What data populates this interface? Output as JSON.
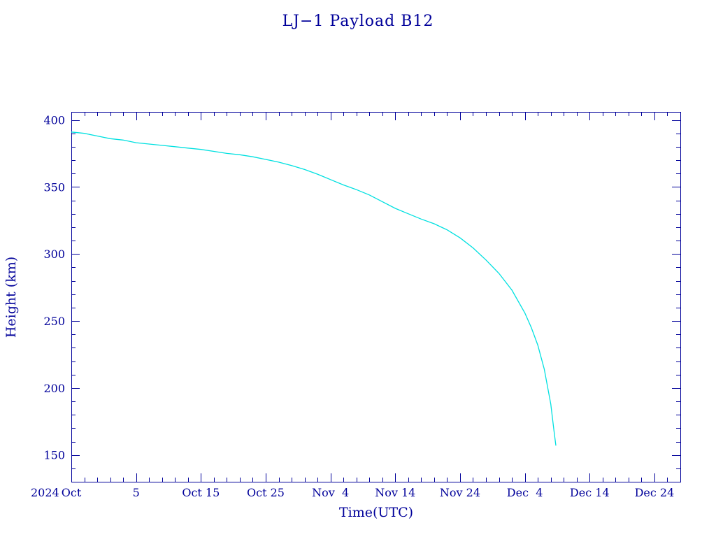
{
  "chart_data": {
    "type": "line",
    "title": "LJ−1 Payload B12",
    "xlabel": "Time(UTC)",
    "ylabel": "Height (km)",
    "x_axis": {
      "type": "date",
      "range": [
        "2024-09-25",
        "2024-12-28"
      ],
      "year_label": "2024",
      "ticks": [
        {
          "date": "2024-09-25",
          "label": "Oct"
        },
        {
          "date": "2024-10-05",
          "label": "5"
        },
        {
          "date": "2024-10-15",
          "label": "Oct 15"
        },
        {
          "date": "2024-10-25",
          "label": "Oct 25"
        },
        {
          "date": "2024-11-04",
          "label": "Nov  4"
        },
        {
          "date": "2024-11-14",
          "label": "Nov 14"
        },
        {
          "date": "2024-11-24",
          "label": "Nov 24"
        },
        {
          "date": "2024-12-04",
          "label": "Dec  4"
        },
        {
          "date": "2024-12-14",
          "label": "Dec 14"
        },
        {
          "date": "2024-12-24",
          "label": "Dec 24"
        }
      ]
    },
    "y_axis": {
      "range": [
        130,
        406
      ],
      "ticks": [
        150,
        200,
        250,
        300,
        350,
        400
      ]
    },
    "grid": false,
    "series": [
      {
        "color": "#00e0e0",
        "points": [
          [
            "2024-09-25",
            391
          ],
          [
            "2024-09-27",
            390
          ],
          [
            "2024-09-29",
            388
          ],
          [
            "2024-10-01",
            386
          ],
          [
            "2024-10-03",
            385
          ],
          [
            "2024-10-05",
            383
          ],
          [
            "2024-10-07",
            382
          ],
          [
            "2024-10-09",
            381
          ],
          [
            "2024-10-11",
            380
          ],
          [
            "2024-10-13",
            379
          ],
          [
            "2024-10-15",
            378
          ],
          [
            "2024-10-17",
            376.5
          ],
          [
            "2024-10-19",
            375
          ],
          [
            "2024-10-21",
            374
          ],
          [
            "2024-10-23",
            372.5
          ],
          [
            "2024-10-25",
            370.5
          ],
          [
            "2024-10-27",
            368.5
          ],
          [
            "2024-10-29",
            366
          ],
          [
            "2024-10-31",
            363
          ],
          [
            "2024-11-02",
            359.5
          ],
          [
            "2024-11-04",
            355.5
          ],
          [
            "2024-11-06",
            351.5
          ],
          [
            "2024-11-08",
            348
          ],
          [
            "2024-11-10",
            344
          ],
          [
            "2024-11-12",
            339
          ],
          [
            "2024-11-14",
            334
          ],
          [
            "2024-11-16",
            330
          ],
          [
            "2024-11-18",
            326
          ],
          [
            "2024-11-20",
            322.5
          ],
          [
            "2024-11-22",
            318
          ],
          [
            "2024-11-24",
            312
          ],
          [
            "2024-11-26",
            304.5
          ],
          [
            "2024-11-28",
            295.5
          ],
          [
            "2024-11-30",
            285.5
          ],
          [
            "2024-12-02",
            273
          ],
          [
            "2024-12-04",
            256
          ],
          [
            "2024-12-05",
            245
          ],
          [
            "2024-12-06",
            232
          ],
          [
            "2024-12-07",
            214
          ],
          [
            "2024-12-08",
            188
          ],
          [
            "2024-12-08T12:00",
            168
          ],
          [
            "2024-12-08T19:00",
            157
          ]
        ]
      }
    ]
  }
}
